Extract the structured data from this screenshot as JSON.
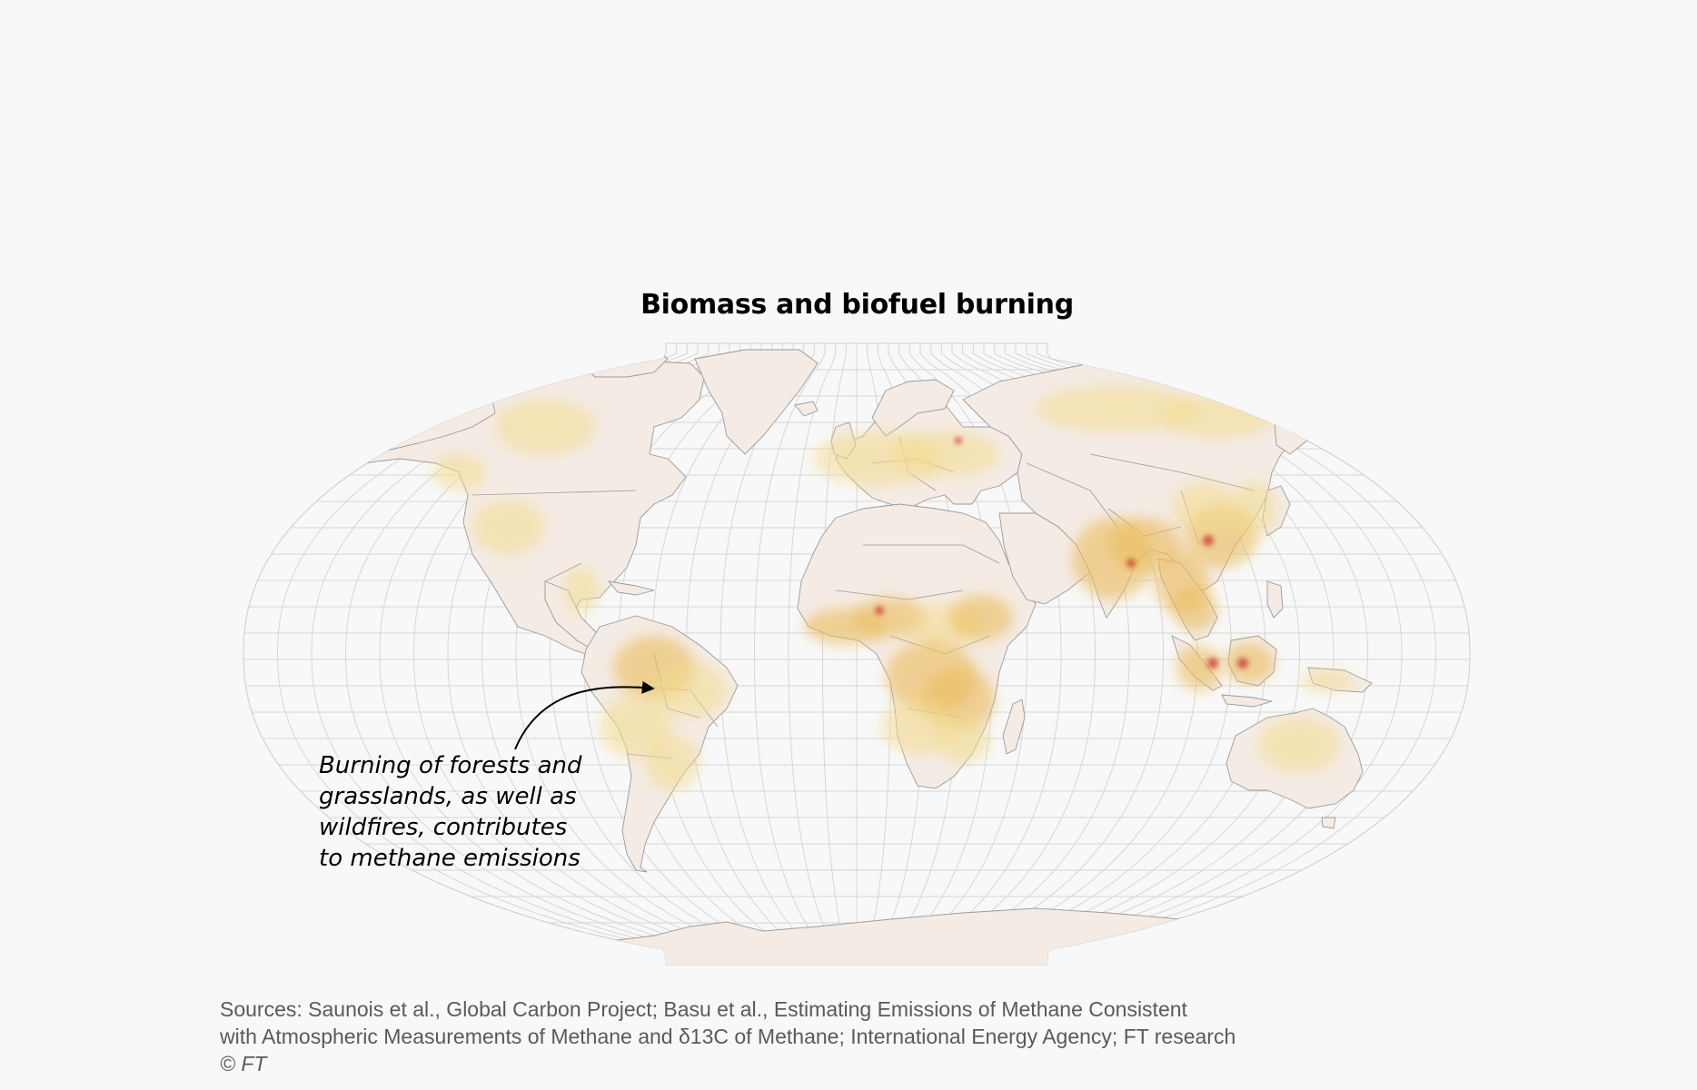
{
  "title": "Biomass and biofuel burning",
  "annotation": {
    "lines": [
      "Burning of forests and",
      "grasslands, as well as",
      "wildfires, contributes",
      "to methane emissions"
    ]
  },
  "sources": {
    "lines": [
      "Sources: Saunois et al., Global Carbon Project; Basu et al., Estimating Emissions of Methane Consistent",
      "with Atmospheric Measurements of Methane and δ13C of Methane; International Energy Agency; FT research"
    ],
    "credit": "© FT"
  },
  "colors": {
    "background": "#f8f8f8",
    "land": "#f4ebe4",
    "graticule": "#d6d6d6",
    "border": "#9a9a9a",
    "low": "#f3dc8e",
    "medium": "#ebbd5e",
    "high": "#e08a52",
    "hotspot": "#c9352b"
  }
}
